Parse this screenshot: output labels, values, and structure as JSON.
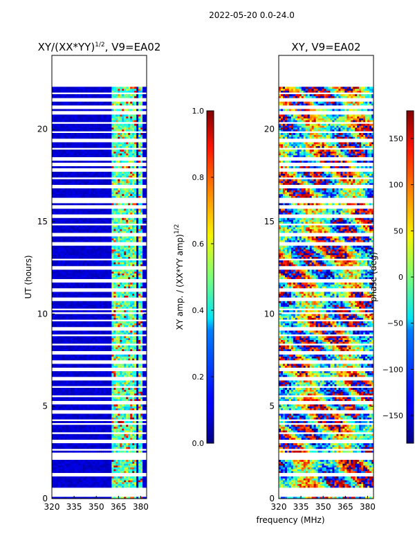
{
  "figure": {
    "suptitle": "2022-05-20 0.0-24.0",
    "shared_xlabel": "frequency (MHz)"
  },
  "chart_data": [
    {
      "type": "heatmap",
      "title": "XY/(XX*YY)",
      "title_exponent": "1/2",
      "title_suffix": ", V9=EA02",
      "xlabel": "",
      "ylabel": "UT (hours)",
      "xlim": [
        320,
        384
      ],
      "ylim": [
        0,
        24
      ],
      "x_ticks": [
        320,
        335,
        350,
        365,
        380
      ],
      "y_ticks": [
        0,
        5,
        10,
        15,
        20
      ],
      "colormap": "jet",
      "data_extent_hours": [
        0,
        22.3
      ],
      "high_amplitude_channels_mhz": [
        [
          361,
          368
        ],
        [
          368,
          371
        ],
        [
          372,
          377
        ],
        [
          378,
          381
        ]
      ],
      "colorbar": {
        "label": "XY amp. / (XX*YY amp)",
        "label_exponent": "1/2",
        "range": [
          0.0,
          1.0
        ],
        "ticks": [
          "0.0",
          "0.2",
          "0.4",
          "0.6",
          "0.8",
          "1.0"
        ]
      }
    },
    {
      "type": "heatmap",
      "title": "XY, V9=EA02",
      "xlabel": "",
      "ylabel": "",
      "xlim": [
        320,
        384
      ],
      "ylim": [
        0,
        24
      ],
      "x_ticks": [
        320,
        335,
        350,
        365,
        380
      ],
      "y_ticks": [
        0,
        5,
        10,
        15,
        20
      ],
      "colormap": "jet",
      "data_extent_hours": [
        0,
        22.3
      ],
      "colorbar": {
        "label": "phase (deg)",
        "range": [
          -180,
          180
        ],
        "ticks": [
          "−150",
          "−100",
          "−50",
          "0",
          "50",
          "100",
          "150"
        ]
      }
    }
  ],
  "flagged_rows_hours": [
    0.18,
    0.3,
    0.42,
    0.55,
    1.3,
    2.2,
    2.35,
    2.48,
    2.62,
    3.1,
    3.55,
    4.05,
    4.25,
    4.7,
    5.2,
    5.55,
    6.05,
    6.5,
    7.0,
    7.4,
    7.9,
    8.35,
    8.85,
    9.2,
    9.65,
    10.05,
    10.25,
    10.8,
    11.3,
    11.75,
    11.85,
    12.5,
    12.95,
    13.8,
    14.3,
    14.85,
    15.3,
    15.75,
    15.85,
    16.05,
    16.2,
    16.9,
    17.35,
    17.8,
    18.1,
    18.4,
    18.95,
    19.4,
    19.85,
    20.35,
    20.9,
    21.2,
    21.6,
    21.95
  ]
}
